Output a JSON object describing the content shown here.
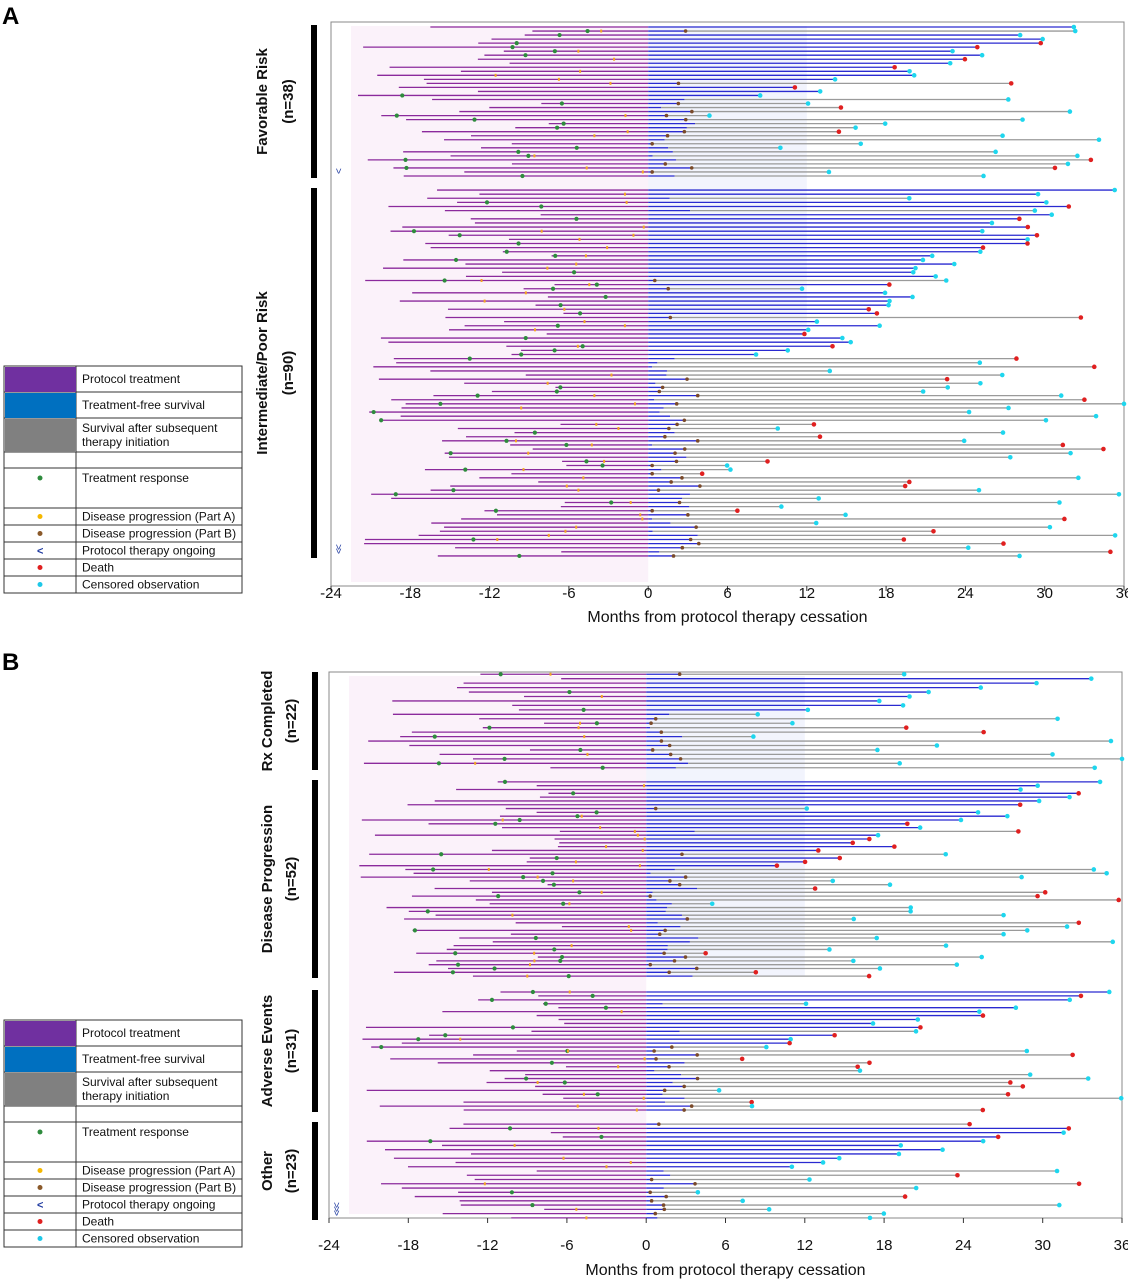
{
  "panels": [
    {
      "letter": "A",
      "xlabel": "Months from protocol therapy cessation",
      "groups": [
        {
          "label": "Favorable Risk",
          "n": "(n=38)",
          "rows": 38,
          "ongoing": 1
        },
        {
          "label": "Intermediate/Poor Risk",
          "n": "(n=90)",
          "rows": 90,
          "ongoing": 2
        }
      ]
    },
    {
      "letter": "B",
      "xlabel": "Months from protocol therapy cessation",
      "groups": [
        {
          "label": "Rx Completed",
          "n": "(n=22)",
          "rows": 22,
          "ongoing": 0
        },
        {
          "label": "Disease Progression",
          "n": "(n=52)",
          "rows": 52,
          "ongoing": 0
        },
        {
          "label": "Adverse Events",
          "n": "(n=31)",
          "rows": 31,
          "ongoing": 0
        },
        {
          "label": "Other",
          "n": "(n=23)",
          "rows": 23,
          "ongoing": 3
        }
      ]
    }
  ],
  "legend": [
    {
      "key": "protocol-treatment",
      "label": "Protocol treatment",
      "kind": "fill",
      "color": "#7030a0"
    },
    {
      "key": "treatment-free-survival",
      "label": "Treatment-free survival",
      "kind": "fill",
      "color": "#0070c0"
    },
    {
      "key": "survival-after-subsequent",
      "label": "Survival after subsequent therapy initiation",
      "kind": "fill",
      "color": "#808080"
    },
    {
      "key": "blank",
      "label": "",
      "kind": "blank",
      "color": ""
    },
    {
      "key": "treatment-response",
      "label": "Treatment response",
      "kind": "dot",
      "color": "#2e8b3d"
    },
    {
      "key": "progression-a",
      "label": "Disease progression (Part A)",
      "kind": "dot",
      "color": "#f5b800"
    },
    {
      "key": "progression-b",
      "label": "Disease progression (Part B)",
      "kind": "dot",
      "color": "#8b5a2b"
    },
    {
      "key": "ongoing",
      "label": "Protocol therapy ongoing",
      "kind": "chevron",
      "color": "#1f3aa0"
    },
    {
      "key": "death",
      "label": "Death",
      "kind": "dot",
      "color": "#e02020"
    },
    {
      "key": "censored",
      "label": "Censored observation",
      "kind": "dot",
      "color": "#1ec8e8"
    }
  ],
  "colors": {
    "treatment": "#8b2a9c",
    "treatment_light": "#e7b8e3",
    "free": "#2a2ad0",
    "free_light": "#b9c3f5",
    "subsequent": "#9a9a9a",
    "response": "#2e8b3d",
    "progA": "#f5a623",
    "progB": "#7a4a2a",
    "death": "#e02020",
    "censored": "#1ed6ee",
    "ongoing": "#1f3aa0"
  },
  "chart_data": [
    {
      "type": "swimmer",
      "panel": "A",
      "xlabel": "Months from protocol therapy cessation",
      "xlim": [
        -24,
        36
      ],
      "xticks": [
        -24,
        -18,
        -12,
        -6,
        0,
        6,
        12,
        18,
        24,
        30,
        36
      ],
      "series": [
        "Protocol treatment",
        "Treatment-free survival",
        "Survival after subsequent therapy initiation"
      ],
      "groups": [
        {
          "name": "Favorable Risk",
          "n": 38
        },
        {
          "name": "Intermediate/Poor Risk",
          "n": 90
        }
      ]
    },
    {
      "type": "swimmer",
      "panel": "B",
      "xlabel": "Months from protocol therapy cessation",
      "xlim": [
        -24,
        36
      ],
      "xticks": [
        -24,
        -18,
        -12,
        -6,
        0,
        6,
        12,
        18,
        24,
        30,
        36
      ],
      "series": [
        "Protocol treatment",
        "Treatment-free survival",
        "Survival after subsequent therapy initiation"
      ],
      "groups": [
        {
          "name": "Rx Completed",
          "n": 22
        },
        {
          "name": "Disease Progression",
          "n": 52
        },
        {
          "name": "Adverse Events",
          "n": 31
        },
        {
          "name": "Other",
          "n": 23
        }
      ]
    }
  ]
}
